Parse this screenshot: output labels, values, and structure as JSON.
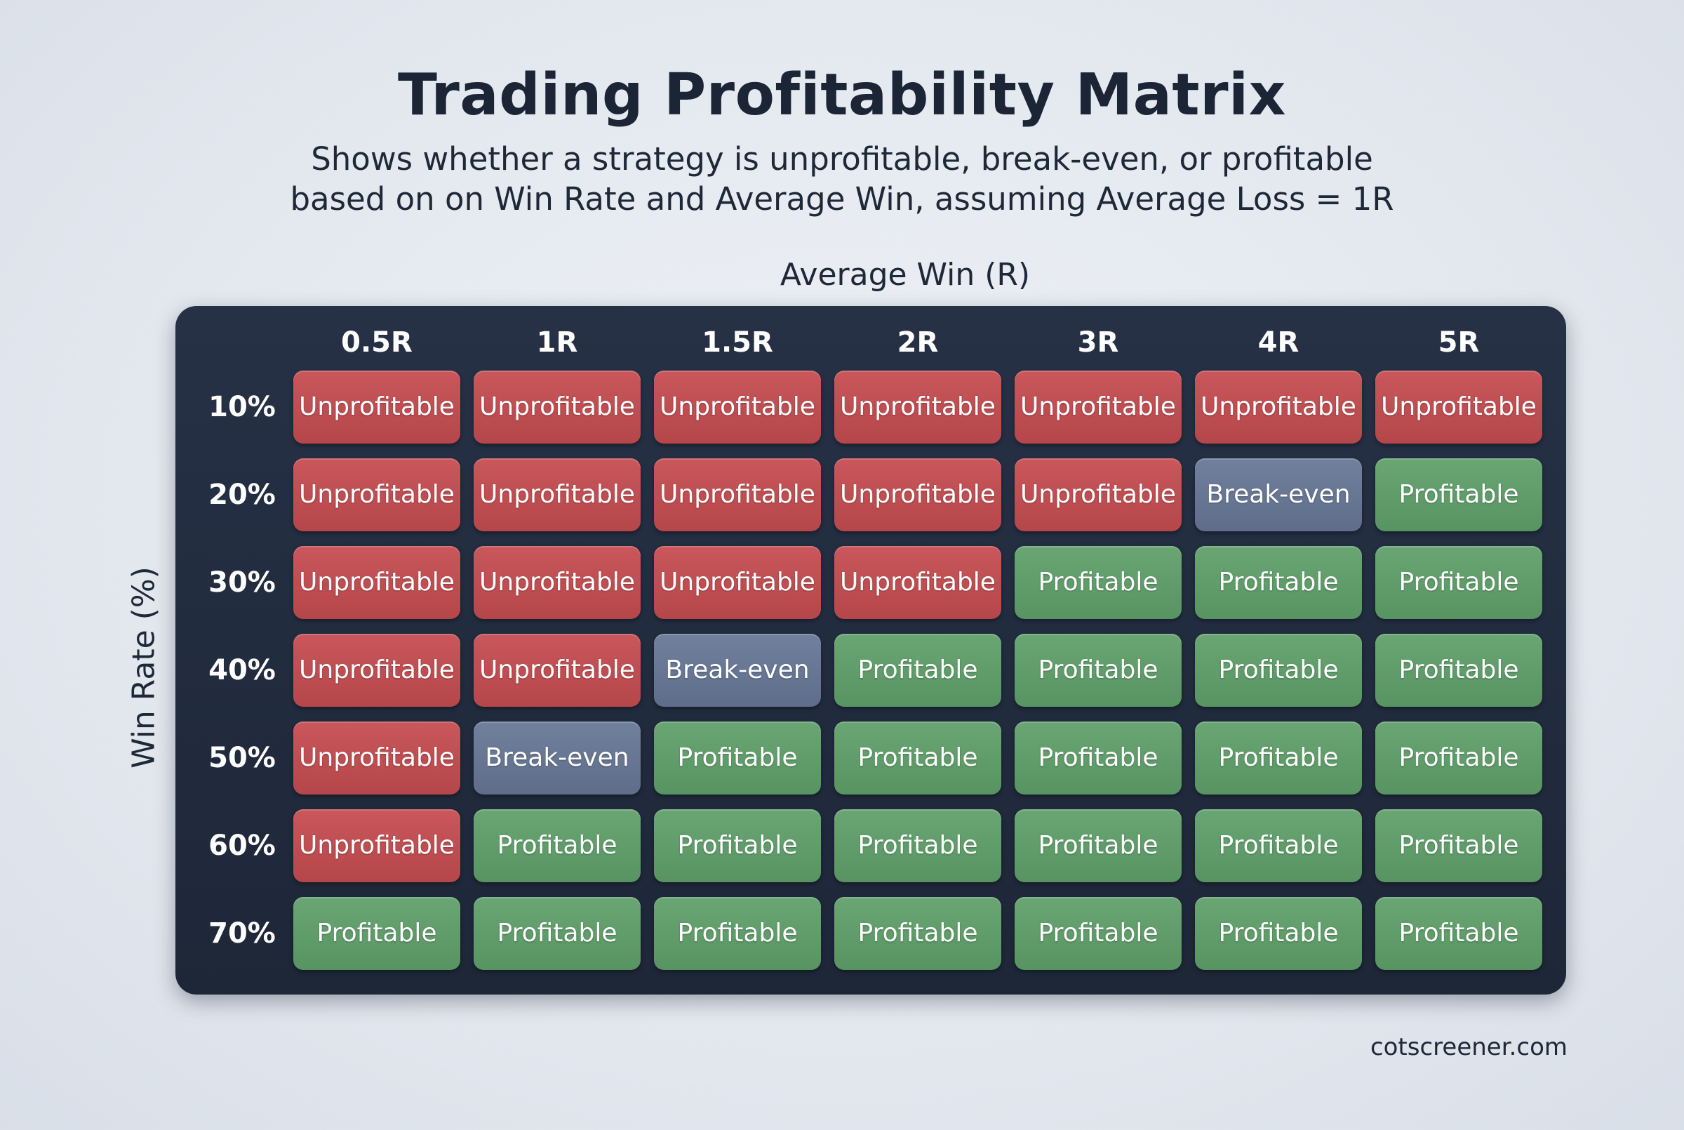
{
  "chart_data": {
    "type": "table",
    "title": "Trading Profitability Matrix",
    "subtitle": "Shows whether a strategy is unprofitable, break-even, or profitable based on on Win Rate and Average Win, assuming Average Loss = 1R",
    "xlabel": "Average Win (R)",
    "ylabel": "Win Rate (%)",
    "columns": [
      "0.5R",
      "1R",
      "1.5R",
      "2R",
      "3R",
      "4R",
      "5R"
    ],
    "rows": [
      "10%",
      "20%",
      "30%",
      "40%",
      "50%",
      "60%",
      "70%"
    ],
    "cells": [
      [
        "Unprofitable",
        "Unprofitable",
        "Unprofitable",
        "Unprofitable",
        "Unprofitable",
        "Unprofitable",
        "Unprofitable"
      ],
      [
        "Unprofitable",
        "Unprofitable",
        "Unprofitable",
        "Unprofitable",
        "Unprofitable",
        "Break-even",
        "Profitable"
      ],
      [
        "Unprofitable",
        "Unprofitable",
        "Unprofitable",
        "Unprofitable",
        "Profitable",
        "Profitable",
        "Profitable"
      ],
      [
        "Unprofitable",
        "Unprofitable",
        "Break-even",
        "Profitable",
        "Profitable",
        "Profitable",
        "Profitable"
      ],
      [
        "Unprofitable",
        "Break-even",
        "Profitable",
        "Profitable",
        "Profitable",
        "Profitable",
        "Profitable"
      ],
      [
        "Unprofitable",
        "Profitable",
        "Profitable",
        "Profitable",
        "Profitable",
        "Profitable",
        "Profitable"
      ],
      [
        "Profitable",
        "Profitable",
        "Profitable",
        "Profitable",
        "Profitable",
        "Profitable",
        "Profitable"
      ]
    ],
    "colors": {
      "Unprofitable": "#bf4f52",
      "Break-even": "#68779a",
      "Profitable": "#619d6b"
    }
  },
  "footer": "cotscreener.com"
}
